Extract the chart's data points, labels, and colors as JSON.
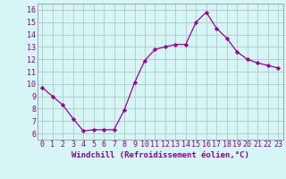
{
  "x": [
    0,
    1,
    2,
    3,
    4,
    5,
    6,
    7,
    8,
    9,
    10,
    11,
    12,
    13,
    14,
    15,
    16,
    17,
    18,
    19,
    20,
    21,
    22,
    23
  ],
  "y": [
    9.7,
    9.0,
    8.3,
    7.2,
    6.2,
    6.3,
    6.3,
    6.3,
    7.9,
    10.1,
    11.9,
    12.8,
    13.0,
    13.2,
    13.2,
    15.0,
    15.8,
    14.5,
    13.7,
    12.6,
    12.0,
    11.7,
    11.5,
    11.3
  ],
  "line_color": "#990099",
  "marker": "D",
  "marker_size": 2.2,
  "bg_color": "#d6f5f5",
  "grid_color": "#b0c8c8",
  "xlabel": "Windchill (Refroidissement éolien,°C)",
  "xlabel_fontsize": 6.5,
  "ylabel_ticks": [
    6,
    7,
    8,
    9,
    10,
    11,
    12,
    13,
    14,
    15,
    16
  ],
  "xlim": [
    -0.5,
    23.5
  ],
  "ylim": [
    5.5,
    16.5
  ],
  "tick_fontsize": 6.0,
  "tick_color": "#880088",
  "label_color": "#880088",
  "spine_color": "#888888"
}
